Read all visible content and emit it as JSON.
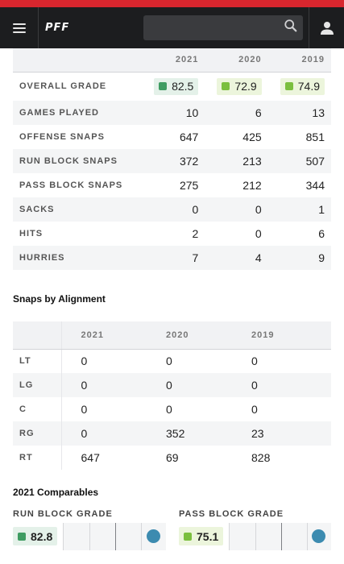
{
  "header": {
    "logo": "PFF",
    "search": {
      "placeholder": ""
    }
  },
  "overview": {
    "years": [
      "2021",
      "2020",
      "2019"
    ],
    "grade": {
      "label": "OVERALL GRADE",
      "values": [
        "82.5",
        "72.9",
        "74.9"
      ],
      "colors": [
        "#3f9c62",
        "#7bbf3f",
        "#7bbf3f"
      ]
    },
    "rows": [
      {
        "label": "GAMES PLAYED",
        "values": [
          "10",
          "6",
          "13"
        ]
      },
      {
        "label": "OFFENSE SNAPS",
        "values": [
          "647",
          "425",
          "851"
        ]
      },
      {
        "label": "RUN BLOCK SNAPS",
        "values": [
          "372",
          "213",
          "507"
        ]
      },
      {
        "label": "PASS BLOCK SNAPS",
        "values": [
          "275",
          "212",
          "344"
        ]
      },
      {
        "label": "SACKS",
        "values": [
          "0",
          "0",
          "1"
        ]
      },
      {
        "label": "HITS",
        "values": [
          "2",
          "0",
          "6"
        ]
      },
      {
        "label": "HURRIES",
        "values": [
          "7",
          "4",
          "9"
        ]
      }
    ]
  },
  "alignment": {
    "title": "Snaps by Alignment",
    "years": [
      "2021",
      "2020",
      "2019"
    ],
    "rows": [
      {
        "label": "LT",
        "values": [
          "0",
          "0",
          "0"
        ]
      },
      {
        "label": "LG",
        "values": [
          "0",
          "0",
          "0"
        ]
      },
      {
        "label": "C",
        "values": [
          "0",
          "0",
          "0"
        ]
      },
      {
        "label": "RG",
        "values": [
          "0",
          "352",
          "23"
        ]
      },
      {
        "label": "RT",
        "values": [
          "647",
          "69",
          "828"
        ]
      }
    ]
  },
  "comparables": {
    "title": "2021 Comparables",
    "run": {
      "label": "RUN BLOCK GRADE",
      "value": "82.8",
      "color": "#3f9c62",
      "marker_position": 0.88
    },
    "pass": {
      "label": "PASS BLOCK GRADE",
      "value": "75.1",
      "color": "#7bbf3f",
      "marker_position": 0.88
    }
  }
}
